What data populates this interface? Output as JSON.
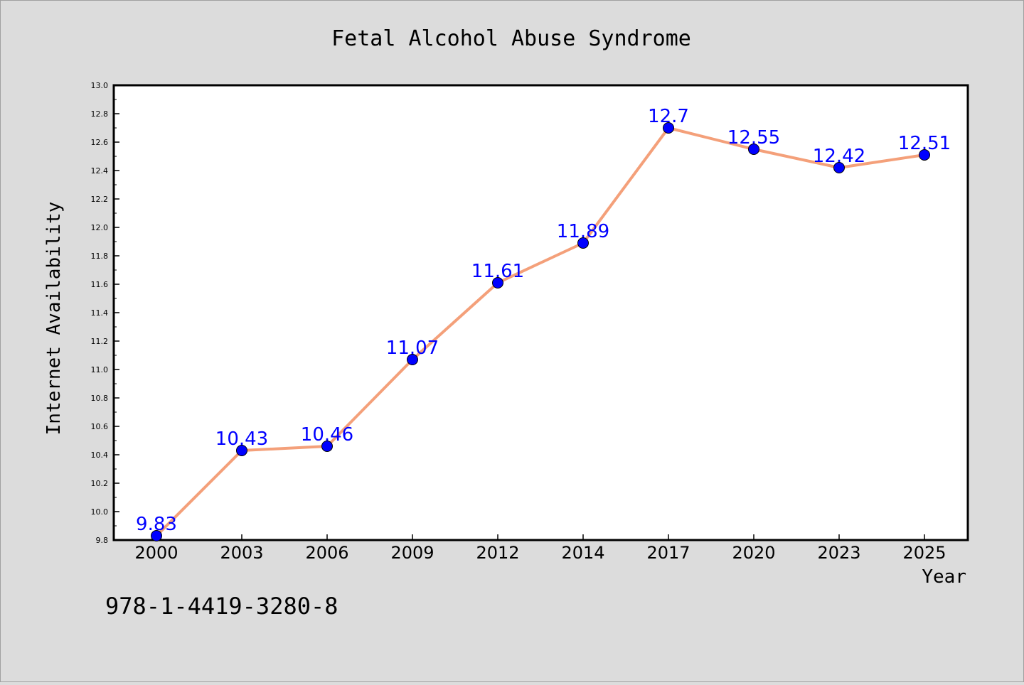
{
  "chart_data": {
    "type": "line",
    "title": "Fetal Alcohol Abuse Syndrome",
    "xlabel": "Year",
    "ylabel": "Internet Availability",
    "categories": [
      "2000",
      "2003",
      "2006",
      "2009",
      "2012",
      "2014",
      "2017",
      "2020",
      "2023",
      "2025"
    ],
    "series": [
      {
        "values": [
          9.83,
          10.43,
          10.46,
          11.07,
          11.61,
          11.89,
          12.7,
          12.55,
          12.42,
          12.51
        ],
        "line_color": "#f4a07a",
        "marker_color": "#0000ff"
      }
    ],
    "data_labels": [
      "9.83",
      "10.43",
      "10.46",
      "11.07",
      "11.61",
      "11.89",
      "12.7",
      "12.55",
      "12.42",
      "12.51"
    ],
    "ylim": [
      9.8,
      13.0
    ],
    "yticks": [
      "9.8",
      "10.0",
      "10.2",
      "10.4",
      "10.6",
      "10.8",
      "11.0",
      "11.2",
      "11.4",
      "11.6",
      "11.8",
      "12.0",
      "12.2",
      "12.4",
      "12.6",
      "12.8",
      "13.0"
    ],
    "grid": false,
    "label_color": "#0000ff"
  },
  "footer": {
    "isbn": "978-1-4419-3280-8"
  }
}
